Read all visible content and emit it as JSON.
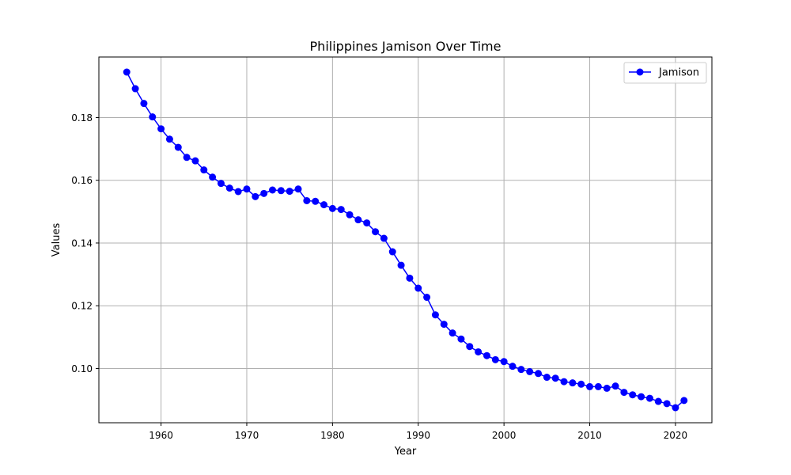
{
  "chart_data": {
    "type": "line",
    "title": "Philippines Jamison Over Time",
    "xlabel": "Year",
    "ylabel": "Values",
    "xlim": [
      1952.75,
      2024.25
    ],
    "ylim": [
      0.0827,
      0.1993
    ],
    "xticks": [
      1960,
      1970,
      1980,
      1990,
      2000,
      2010,
      2020
    ],
    "xtick_labels": [
      "1960",
      "1970",
      "1980",
      "1990",
      "2000",
      "2010",
      "2020"
    ],
    "yticks": [
      0.1,
      0.12,
      0.14,
      0.16,
      0.18
    ],
    "ytick_labels": [
      "0.10",
      "0.12",
      "0.14",
      "0.16",
      "0.18"
    ],
    "grid": true,
    "legend_position": "upper right",
    "color": "#0000ff",
    "series": [
      {
        "name": "Jamison",
        "marker": "circle",
        "x": [
          1956,
          1957,
          1958,
          1959,
          1960,
          1961,
          1962,
          1963,
          1964,
          1965,
          1966,
          1967,
          1968,
          1969,
          1970,
          1971,
          1972,
          1973,
          1974,
          1975,
          1976,
          1977,
          1978,
          1979,
          1980,
          1981,
          1982,
          1983,
          1984,
          1985,
          1986,
          1987,
          1988,
          1989,
          1990,
          1991,
          1992,
          1993,
          1994,
          1995,
          1996,
          1997,
          1998,
          1999,
          2000,
          2001,
          2002,
          2003,
          2004,
          2005,
          2006,
          2007,
          2008,
          2009,
          2010,
          2011,
          2012,
          2013,
          2014,
          2015,
          2016,
          2017,
          2018,
          2019,
          2020,
          2021
        ],
        "values": [
          0.1945,
          0.1892,
          0.1845,
          0.1802,
          0.1764,
          0.1731,
          0.1705,
          0.1673,
          0.1662,
          0.1633,
          0.161,
          0.159,
          0.1575,
          0.1564,
          0.1572,
          0.1548,
          0.1558,
          0.1569,
          0.1567,
          0.1565,
          0.1572,
          0.1535,
          0.1533,
          0.1522,
          0.151,
          0.1507,
          0.149,
          0.1474,
          0.1464,
          0.1436,
          0.1415,
          0.1372,
          0.1329,
          0.1288,
          0.1256,
          0.1227,
          0.1171,
          0.1141,
          0.1113,
          0.1094,
          0.107,
          0.1053,
          0.1041,
          0.1028,
          0.1022,
          0.1007,
          0.0997,
          0.099,
          0.0984,
          0.0972,
          0.0969,
          0.0958,
          0.0954,
          0.095,
          0.0942,
          0.0942,
          0.0937,
          0.0944,
          0.0924,
          0.0916,
          0.091,
          0.0905,
          0.0895,
          0.0888,
          0.0875,
          0.0898
        ]
      }
    ]
  }
}
